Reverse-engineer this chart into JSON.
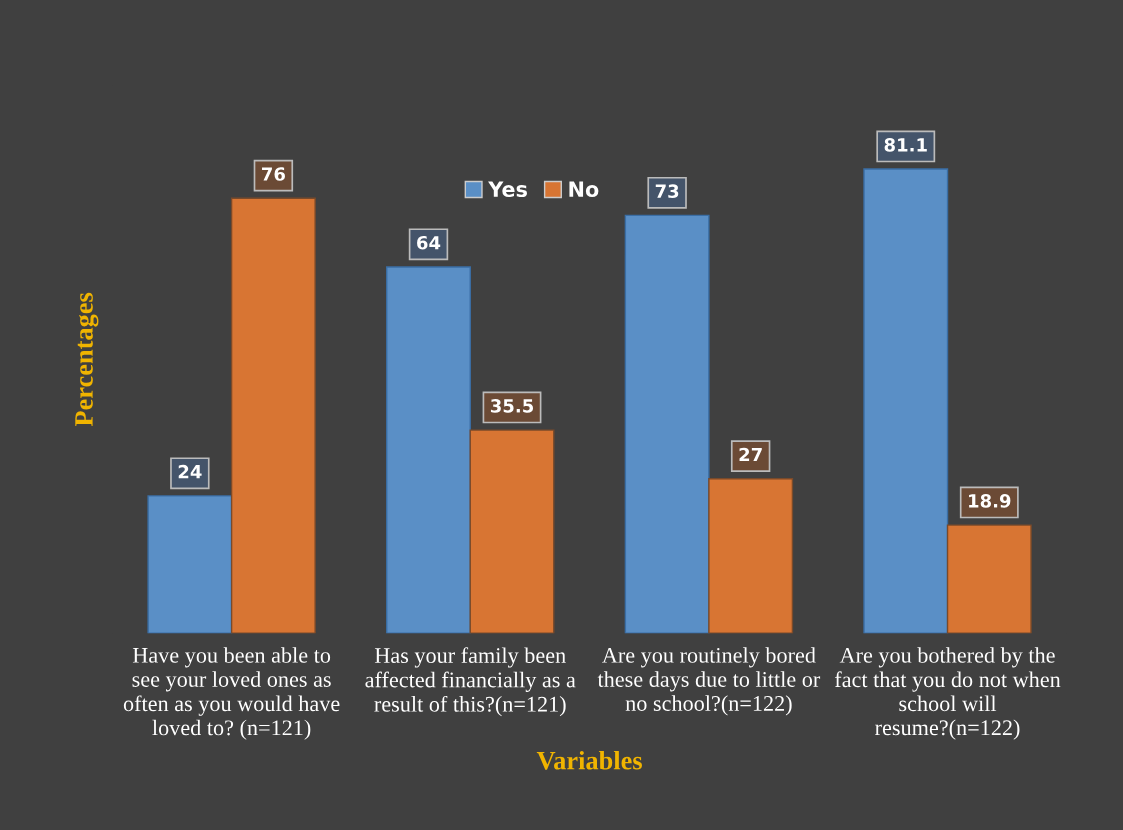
{
  "chart_data": {
    "type": "bar",
    "xlabel": "Variables",
    "ylabel": "Percentages",
    "categories": [
      "Have you been able to\nsee your loved ones as\noften as you would have\nloved to? (n=121)",
      "Has your family been\naffected financially as a\nresult of this?(n=121)",
      "Are you routinely bored\nthese days due to little or\nno school?(n=122)",
      "Are you bothered by the\nfact that you do not when\nschool will\nresume?(n=122)"
    ],
    "series": [
      {
        "name": "Yes",
        "color": "#5a8fc6",
        "values": [
          24,
          64,
          73,
          81.1
        ]
      },
      {
        "name": "No",
        "color": "#d87533",
        "values": [
          76,
          35.5,
          27,
          18.9
        ]
      }
    ],
    "data_labels": true,
    "legend": "top",
    "grid": false
  }
}
